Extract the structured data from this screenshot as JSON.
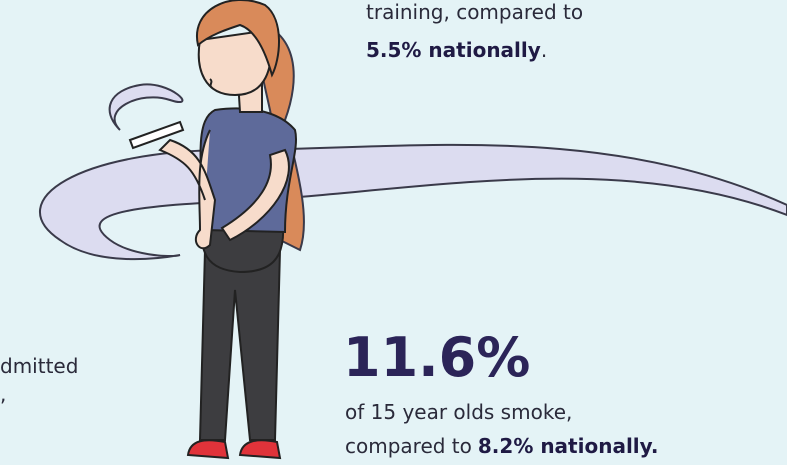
{
  "top_block": {
    "line1": "training, compared to",
    "highlight": "5.5% nationally",
    "end": "."
  },
  "left_block": {
    "line1": "dmitted",
    "line2": ","
  },
  "bottom_block": {
    "stat": "11.6%",
    "line1": "of 15 year olds smoke,",
    "line2": "compared to",
    "highlight": "8.2% nationally."
  }
}
